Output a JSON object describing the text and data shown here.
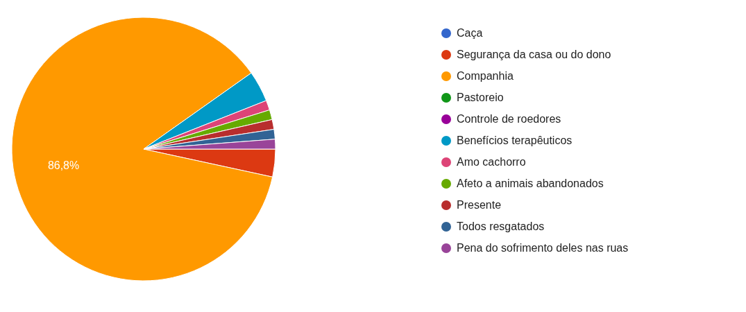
{
  "chart_data": {
    "type": "pie",
    "categories": [
      "Caça",
      "Segurança da casa ou do dono",
      "Companhia",
      "Pastoreio",
      "Controle de roedores",
      "Benefícios terapêuticos",
      "Amo cachorro",
      "Afeto a animais abandonados",
      "Presente",
      "Todos resgatados",
      "Pena do sofrimento deles nas ruas"
    ],
    "values": [
      0,
      3.4,
      86.8,
      0,
      0,
      3.8,
      1.2,
      1.2,
      1.2,
      1.2,
      1.2
    ],
    "colors": [
      "#3366cc",
      "#dc3912",
      "#ff9900",
      "#109618",
      "#990099",
      "#0099c6",
      "#dd4477",
      "#66aa00",
      "#b82e2e",
      "#316395",
      "#994499"
    ],
    "value_labels": [
      null,
      null,
      "86,8%",
      null,
      null,
      null,
      null,
      null,
      null,
      null,
      null
    ],
    "legend": "right"
  }
}
